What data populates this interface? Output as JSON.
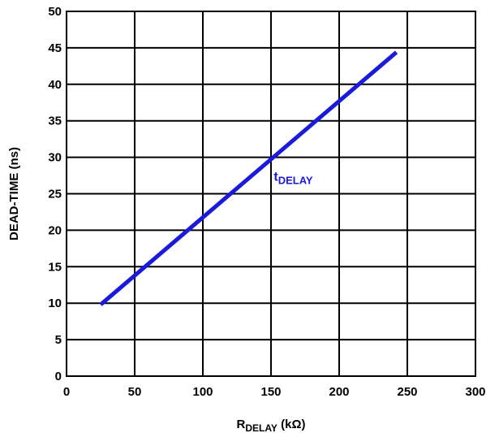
{
  "chart_data": {
    "type": "line",
    "title": "",
    "xlabel": {
      "main": "R",
      "sub": "DELAY",
      "unit": " (kΩ)"
    },
    "ylabel": "DEAD-TIME (ns)",
    "xlim": [
      0,
      300
    ],
    "ylim": [
      0,
      50
    ],
    "xticks": [
      "0",
      "50",
      "100",
      "150",
      "200",
      "250",
      "300"
    ],
    "yticks": [
      "0",
      "5",
      "10",
      "15",
      "20",
      "25",
      "30",
      "35",
      "40",
      "45",
      "50"
    ],
    "grid": true,
    "series": [
      {
        "name": {
          "main": "t",
          "sub": "DELAY"
        },
        "color": "#1a1adb",
        "points": [
          [
            25,
            9.8
          ],
          [
            242,
            44.4
          ]
        ]
      }
    ]
  }
}
